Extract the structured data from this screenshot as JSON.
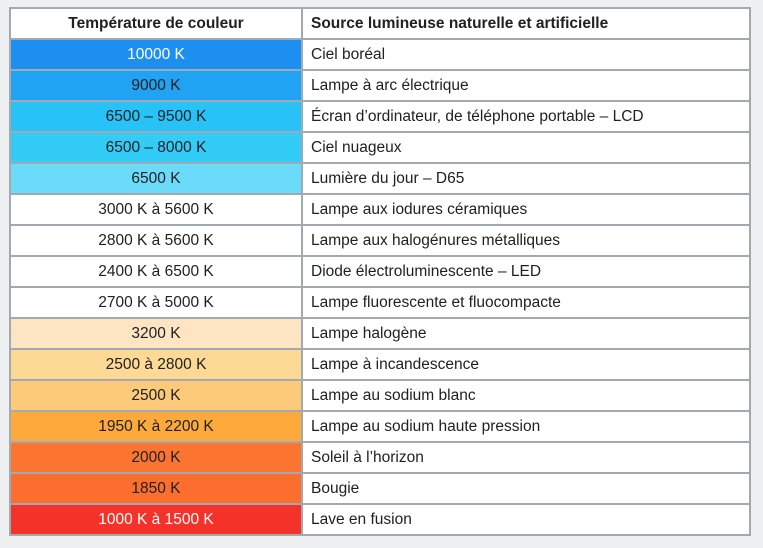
{
  "table": {
    "headers": [
      "Température de couleur",
      "Source lumineuse naturelle et artificielle"
    ],
    "rows": [
      {
        "temp": "10000 K",
        "source": "Ciel boréal",
        "color": "#1d8ff0",
        "text_color": "#ffffff"
      },
      {
        "temp": "9000 K",
        "source": "Lampe à arc électrique",
        "color": "#20a3f3",
        "text_color": "#202122"
      },
      {
        "temp": "6500 – 9500 K",
        "source": "Écran d’ordinateur, de téléphone portable – LCD",
        "color": "#27c2f7",
        "text_color": "#202122"
      },
      {
        "temp": "6500 – 8000 K",
        "source": "Ciel nuageux",
        "color": "#32ccf7",
        "text_color": "#202122"
      },
      {
        "temp": "6500 K",
        "source": "Lumière du jour – D65",
        "color": "#6adcfa",
        "text_color": "#202122"
      },
      {
        "temp": "3000 K à 5600 K",
        "source": "Lampe aux iodures céramiques",
        "color": "#ffffff",
        "text_color": "#202122"
      },
      {
        "temp": "2800 K à 5600 K",
        "source": "Lampe aux halogénures métalliques",
        "color": "#ffffff",
        "text_color": "#202122"
      },
      {
        "temp": "2400 K à 6500 K",
        "source": "Diode électroluminescente – LED",
        "color": "#ffffff",
        "text_color": "#202122"
      },
      {
        "temp": "2700 K à 5000 K",
        "source": "Lampe fluorescente et fluocompacte",
        "color": "#ffffff",
        "text_color": "#202122"
      },
      {
        "temp": "3200 K",
        "source": "Lampe halogène",
        "color": "#fde5c4",
        "text_color": "#202122"
      },
      {
        "temp": "2500 à 2800 K",
        "source": "Lampe à incandescence",
        "color": "#fdd996",
        "text_color": "#202122"
      },
      {
        "temp": "2500 K",
        "source": "Lampe au sodium blanc",
        "color": "#fdca7a",
        "text_color": "#202122"
      },
      {
        "temp": "1950 K à 2200 K",
        "source": "Lampe au sodium haute pression",
        "color": "#fda93b",
        "text_color": "#202122"
      },
      {
        "temp": "2000 K",
        "source": "Soleil à l’horizon",
        "color": "#fb7531",
        "text_color": "#202122"
      },
      {
        "temp": "1850 K",
        "source": "Bougie",
        "color": "#fc6e2e",
        "text_color": "#202122"
      },
      {
        "temp": "1000 K à 1500 K",
        "source": "Lave en fusion",
        "color": "#f4322a",
        "text_color": "#ffffff"
      }
    ]
  }
}
